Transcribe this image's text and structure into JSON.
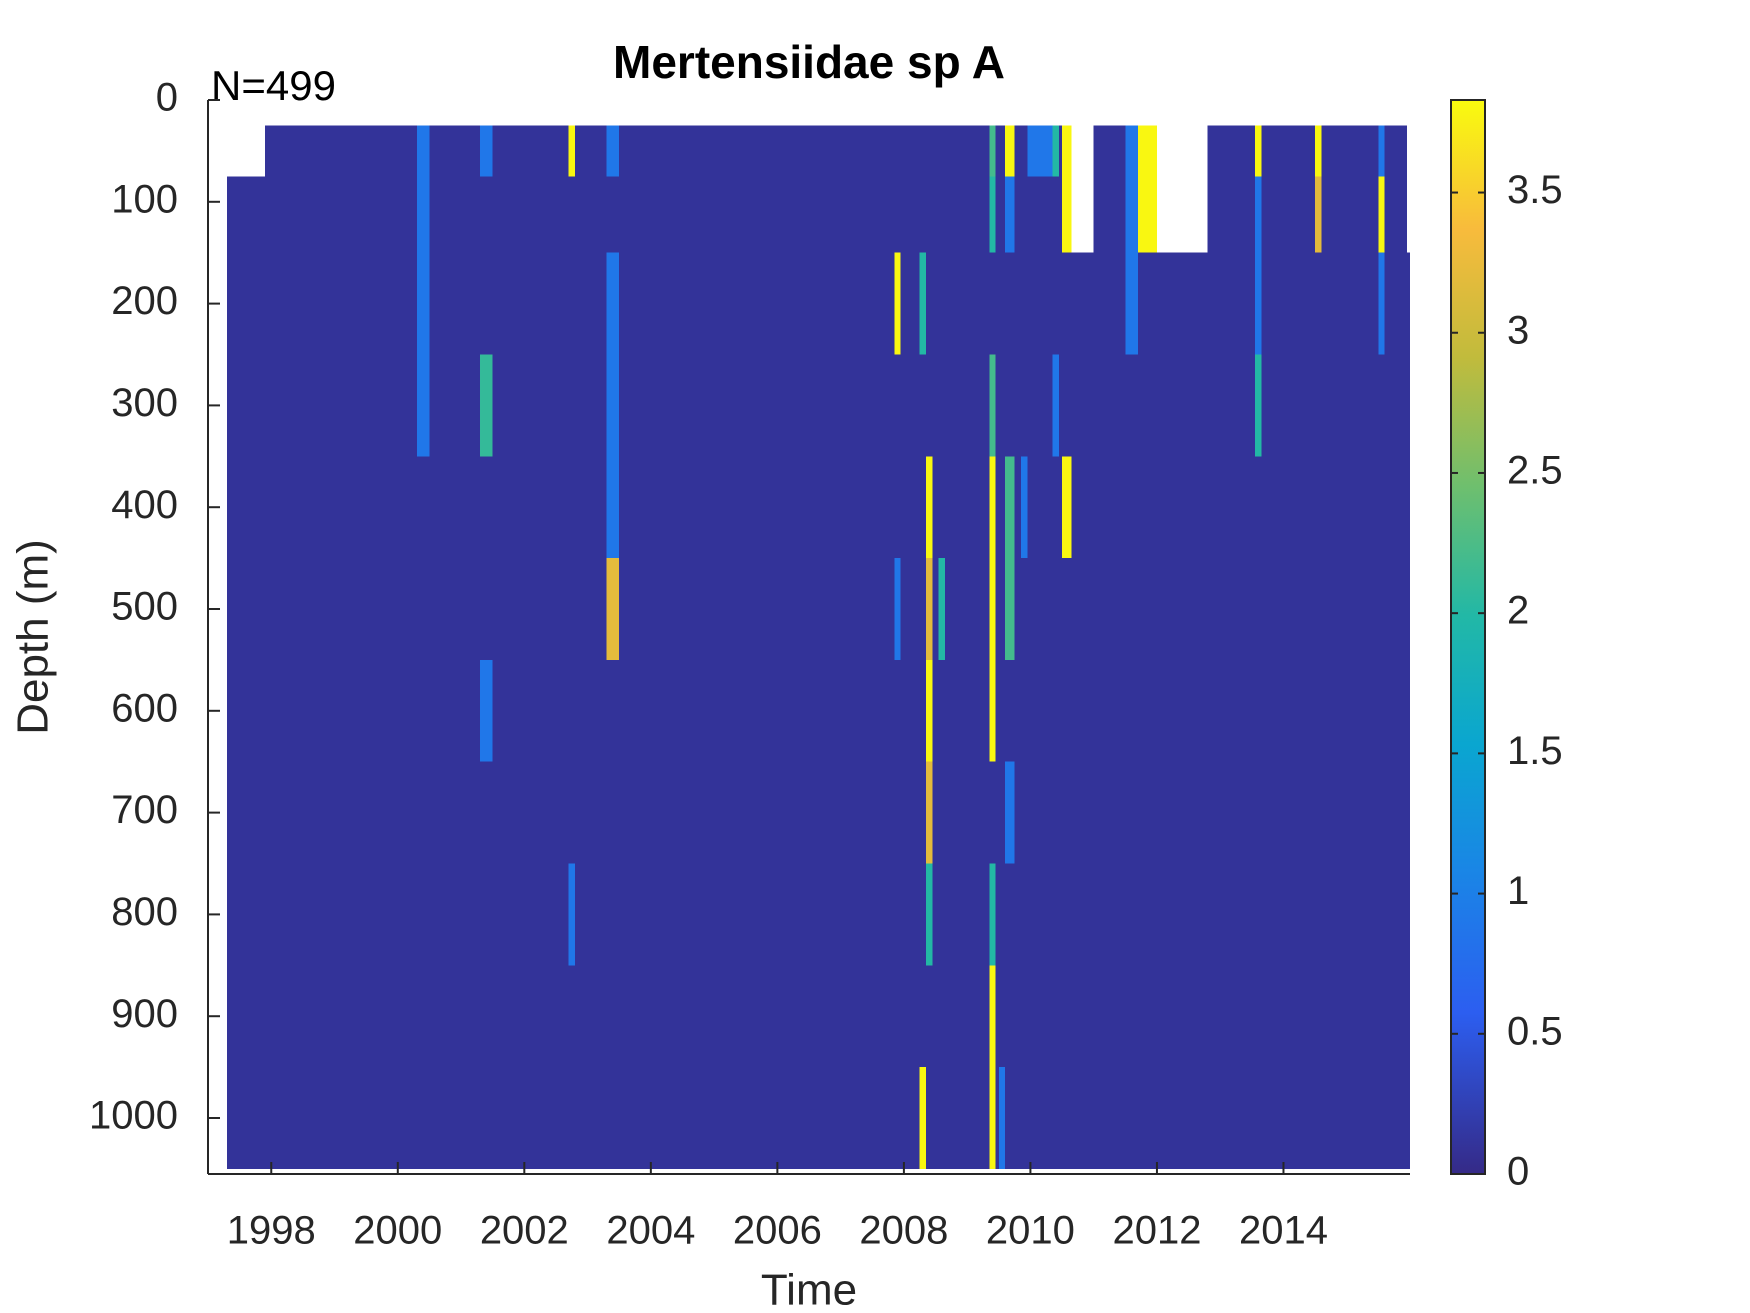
{
  "chart_data": {
    "type": "heatmap",
    "title": "Mertensiidae sp A",
    "annotation": "N=499",
    "xlabel": "Time",
    "ylabel": "Depth (m)",
    "x_edges": [
      1997.3,
      1997.9,
      2000.3,
      2000.5,
      2001.3,
      2001.5,
      2002.7,
      2002.8,
      2003.3,
      2003.5,
      2007.85,
      2007.95,
      2008.25,
      2008.35,
      2008.45,
      2008.55,
      2008.65,
      2009.35,
      2009.45,
      2009.5,
      2009.6,
      2009.75,
      2009.85,
      2009.95,
      2010.35,
      2010.45,
      2010.5,
      2010.65,
      2011.0,
      2011.5,
      2011.7,
      2012.0,
      2012.8,
      2013.55,
      2013.65,
      2014.5,
      2014.6,
      2015.5,
      2015.6,
      2015.95,
      2016.0
    ],
    "y_edges": [
      25,
      75,
      150,
      250,
      350,
      450,
      550,
      650,
      750,
      850,
      950,
      1050
    ],
    "z": [
      [
        null,
        0.1,
        0.9,
        0.1,
        0.9,
        0.1,
        3.8,
        0.1,
        0.9,
        0.1,
        0.1,
        0.1,
        0.1,
        0.1,
        0.1,
        0.1,
        0.1,
        2.2,
        0.1,
        0.1,
        3.8,
        0.1,
        0.1,
        0.9,
        2.0,
        0.1,
        3.8,
        null,
        0.1,
        0.9,
        3.8,
        null,
        0.1,
        3.8,
        0.1,
        3.8,
        0.1,
        0.9,
        0.1,
        null
      ],
      [
        0.1,
        0.1,
        0.9,
        0.1,
        0.1,
        0.1,
        0.1,
        0.1,
        0.1,
        0.1,
        0.1,
        0.1,
        0.1,
        0.1,
        0.1,
        0.1,
        0.1,
        2.0,
        0.1,
        0.1,
        0.9,
        0.1,
        0.1,
        0.1,
        0.1,
        0.1,
        3.8,
        null,
        0.1,
        0.9,
        3.8,
        null,
        0.1,
        0.9,
        0.1,
        3.2,
        0.1,
        3.8,
        0.1,
        null
      ],
      [
        0.1,
        0.1,
        0.9,
        0.1,
        0.1,
        0.1,
        0.1,
        0.1,
        0.9,
        0.1,
        3.8,
        0.1,
        2.0,
        0.1,
        0.1,
        0.1,
        0.1,
        0.1,
        0.1,
        0.1,
        0.1,
        0.1,
        0.1,
        0.1,
        0.1,
        0.1,
        0.1,
        0.1,
        0.1,
        0.9,
        0.1,
        0.1,
        0.1,
        0.9,
        0.1,
        0.1,
        0.1,
        0.9,
        0.1,
        0.1
      ],
      [
        0.1,
        0.1,
        0.9,
        0.1,
        2.1,
        0.1,
        0.1,
        0.1,
        0.9,
        0.1,
        0.1,
        0.1,
        0.1,
        0.1,
        0.1,
        0.1,
        0.1,
        2.2,
        0.1,
        0.1,
        0.1,
        0.1,
        0.1,
        0.1,
        0.9,
        0.1,
        0.1,
        0.1,
        0.1,
        0.1,
        0.1,
        0.1,
        0.1,
        2.0,
        0.1,
        0.1,
        0.1,
        0.1,
        0.1,
        0.1
      ],
      [
        0.1,
        0.1,
        0.1,
        0.1,
        0.1,
        0.1,
        0.1,
        0.1,
        0.9,
        0.1,
        0.1,
        0.1,
        0.1,
        3.8,
        0.1,
        0.1,
        0.1,
        3.8,
        0.1,
        0.1,
        2.2,
        0.1,
        0.9,
        0.1,
        0.1,
        0.1,
        3.8,
        0.1,
        0.1,
        0.1,
        0.1,
        0.1,
        0.1,
        0.1,
        0.1,
        0.1,
        0.1,
        0.1,
        0.1,
        0.1
      ],
      [
        0.1,
        0.1,
        0.1,
        0.1,
        0.1,
        0.1,
        0.1,
        0.1,
        3.2,
        0.1,
        0.9,
        0.1,
        0.1,
        3.2,
        0.1,
        2.0,
        0.1,
        3.8,
        0.1,
        0.1,
        2.2,
        0.1,
        0.1,
        0.1,
        0.1,
        0.1,
        0.1,
        0.1,
        0.1,
        0.1,
        0.1,
        0.1,
        0.1,
        0.1,
        0.1,
        0.1,
        0.1,
        0.1,
        0.1,
        0.1
      ],
      [
        0.1,
        0.1,
        0.1,
        0.1,
        0.9,
        0.1,
        0.1,
        0.1,
        0.1,
        0.1,
        0.1,
        0.1,
        0.1,
        3.8,
        0.1,
        0.1,
        0.1,
        3.8,
        0.1,
        0.1,
        0.1,
        0.1,
        0.1,
        0.1,
        0.1,
        0.1,
        0.1,
        0.1,
        0.1,
        0.1,
        0.1,
        0.1,
        0.1,
        0.1,
        0.1,
        0.1,
        0.1,
        0.1,
        0.1,
        0.1
      ],
      [
        0.1,
        0.1,
        0.1,
        0.1,
        0.1,
        0.1,
        0.1,
        0.1,
        0.1,
        0.1,
        0.1,
        0.1,
        0.1,
        3.2,
        0.1,
        0.1,
        0.1,
        0.1,
        0.1,
        0.1,
        0.9,
        0.1,
        0.1,
        0.1,
        0.1,
        0.1,
        0.1,
        0.1,
        0.1,
        0.1,
        0.1,
        0.1,
        0.1,
        0.1,
        0.1,
        0.1,
        0.1,
        0.1,
        0.1,
        0.1
      ],
      [
        0.1,
        0.1,
        0.1,
        0.1,
        0.1,
        0.1,
        0.9,
        0.1,
        0.1,
        0.1,
        0.1,
        0.1,
        0.1,
        2.0,
        0.1,
        0.1,
        0.1,
        2.0,
        0.1,
        0.1,
        0.1,
        0.1,
        0.1,
        0.1,
        0.1,
        0.1,
        0.1,
        0.1,
        0.1,
        0.1,
        0.1,
        0.1,
        0.1,
        0.1,
        0.1,
        0.1,
        0.1,
        0.1,
        0.1,
        0.1
      ],
      [
        0.1,
        0.1,
        0.1,
        0.1,
        0.1,
        0.1,
        0.1,
        0.1,
        0.1,
        0.1,
        0.1,
        0.1,
        0.1,
        0.1,
        0.1,
        0.1,
        0.1,
        3.8,
        0.1,
        0.1,
        0.1,
        0.1,
        0.1,
        0.1,
        0.1,
        0.1,
        0.1,
        0.1,
        0.1,
        0.1,
        0.1,
        0.1,
        0.1,
        0.1,
        0.1,
        0.1,
        0.1,
        0.1,
        0.1,
        0.1
      ],
      [
        0.1,
        0.1,
        0.1,
        0.1,
        0.1,
        0.1,
        0.1,
        0.1,
        0.1,
        0.1,
        0.1,
        0.1,
        3.8,
        0.1,
        0.1,
        0.1,
        0.1,
        3.8,
        0.1,
        0.9,
        0.1,
        0.1,
        0.1,
        0.1,
        0.1,
        0.1,
        0.1,
        0.1,
        0.1,
        0.1,
        0.1,
        0.1,
        0.1,
        0.1,
        0.1,
        0.1,
        0.1,
        0.1,
        0.1,
        0.1
      ]
    ],
    "xlim": [
      1997,
      2016
    ],
    "ylim": [
      0,
      1055
    ],
    "y_reversed": true,
    "xticks": [
      1998,
      2000,
      2002,
      2004,
      2006,
      2008,
      2010,
      2012,
      2014
    ],
    "yticks": [
      0,
      100,
      200,
      300,
      400,
      500,
      600,
      700,
      800,
      900,
      1000
    ],
    "colormap": "parula",
    "clim": [
      0,
      3.83
    ],
    "colorbar_ticks": [
      0,
      0.5,
      1,
      1.5,
      2,
      2.5,
      3,
      3.5
    ]
  }
}
